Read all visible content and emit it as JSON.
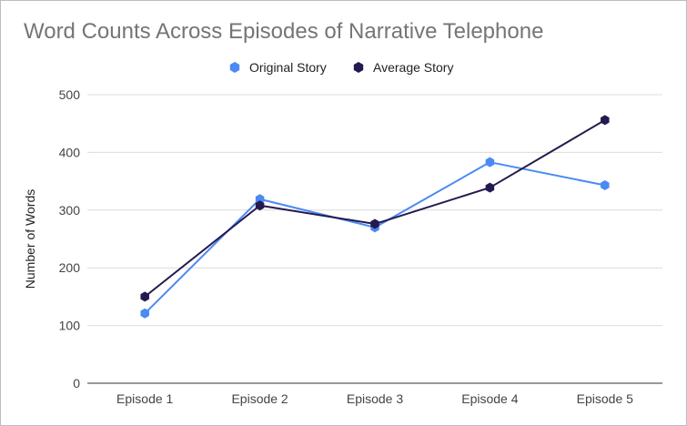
{
  "chart_data": {
    "type": "line",
    "title": "Word Counts Across Episodes of Narrative Telephone",
    "xlabel": "",
    "ylabel": "Number of Words",
    "categories": [
      "Episode 1",
      "Episode 2",
      "Episode 3",
      "Episode 4",
      "Episode 5"
    ],
    "ylim": [
      0,
      500
    ],
    "yticks": [
      0,
      100,
      200,
      300,
      400,
      500
    ],
    "grid": true,
    "legend_position": "top-center",
    "series": [
      {
        "name": "Original Story",
        "color": "#4a8af4",
        "values": [
          121,
          319,
          270,
          383,
          343
        ]
      },
      {
        "name": "Average Story",
        "color": "#241a4f",
        "values": [
          150,
          308,
          276,
          339,
          456
        ]
      }
    ]
  }
}
